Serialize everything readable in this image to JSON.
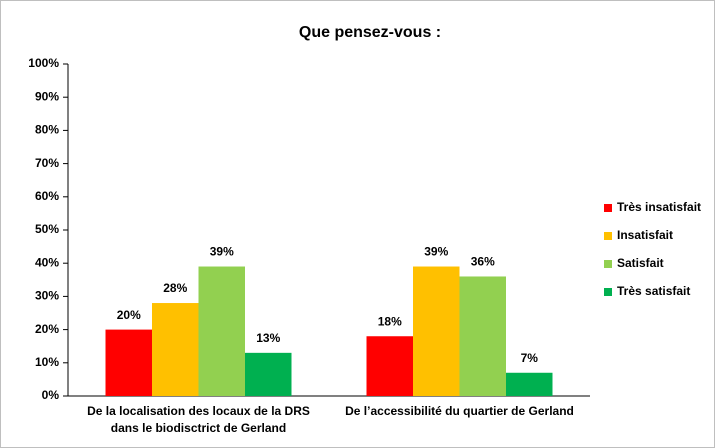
{
  "chart_data": {
    "type": "bar",
    "title": "Que pensez-vous :",
    "categories": [
      "De la localisation des locaux de la DRS dans le biodisctrict de Gerland",
      "De l’accessibilité du quartier de Gerland"
    ],
    "series": [
      {
        "name": "Très insatisfait",
        "color": "#ff0000",
        "values": [
          20,
          18
        ],
        "value_labels": [
          "20%",
          "18%"
        ]
      },
      {
        "name": "Insatisfait",
        "color": "#ffc000",
        "values": [
          28,
          39
        ],
        "value_labels": [
          "28%",
          "39%"
        ]
      },
      {
        "name": "Satisfait",
        "color": "#92d050",
        "values": [
          39,
          36
        ],
        "value_labels": [
          "39%",
          "36%"
        ]
      },
      {
        "name": "Très satisfait",
        "color": "#00b050",
        "values": [
          13,
          7
        ],
        "value_labels": [
          "13%",
          "7%"
        ]
      }
    ],
    "ylim": [
      0,
      100
    ],
    "yticks": [
      {
        "value": 0,
        "label": "0%"
      },
      {
        "value": 10,
        "label": "10%"
      },
      {
        "value": 20,
        "label": "20%"
      },
      {
        "value": 30,
        "label": "30%"
      },
      {
        "value": 40,
        "label": "40%"
      },
      {
        "value": 50,
        "label": "50%"
      },
      {
        "value": 60,
        "label": "60%"
      },
      {
        "value": 70,
        "label": "70%"
      },
      {
        "value": 80,
        "label": "80%"
      },
      {
        "value": 90,
        "label": "90%"
      },
      {
        "value": 100,
        "label": "100%"
      }
    ],
    "grid": false,
    "legend": "right"
  }
}
